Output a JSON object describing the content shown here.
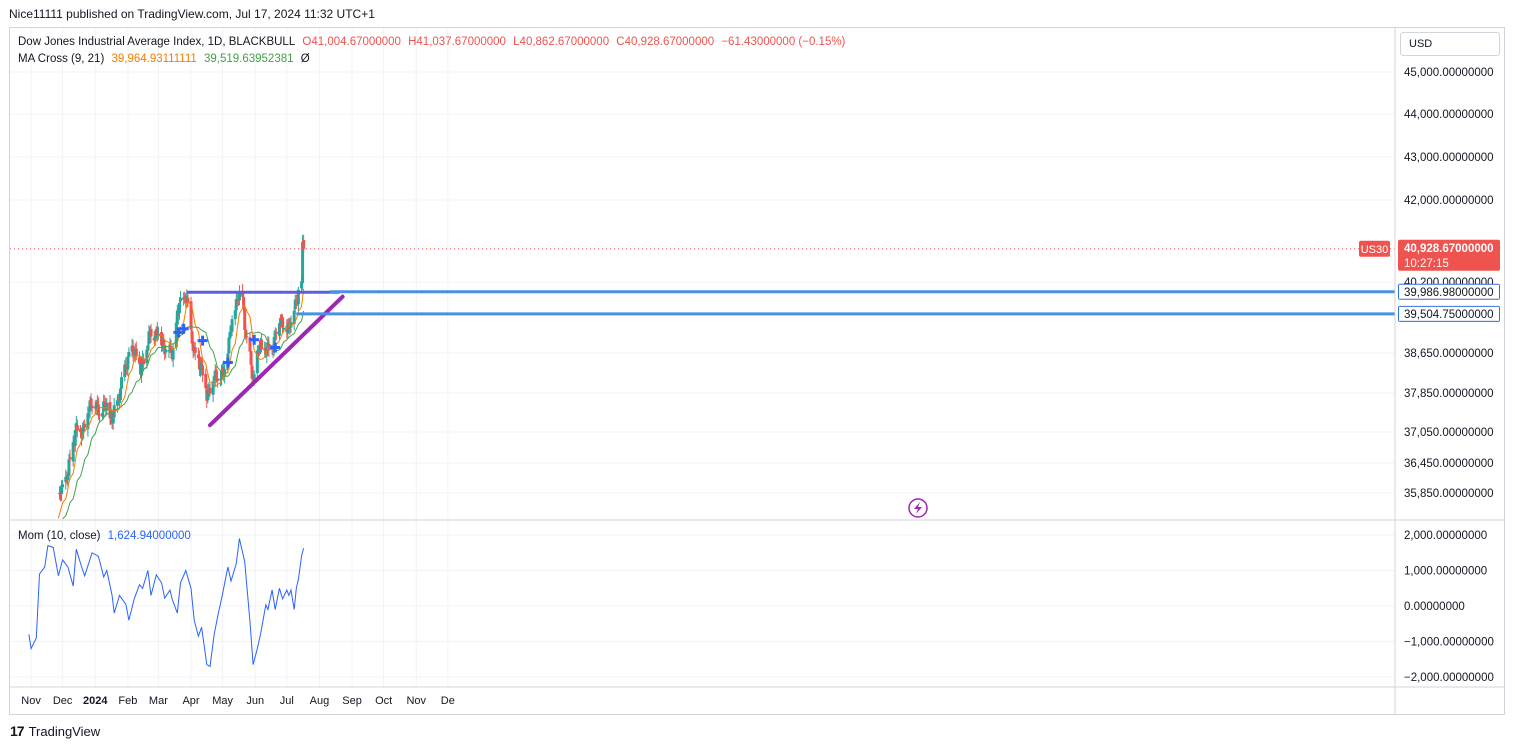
{
  "header": {
    "published": "Nice11111 published on TradingView.com, Jul 17, 2024 11:32 UTC+1"
  },
  "legend": {
    "main_title": "Dow Jones Industrial Average Index, 1D, BLACKBULL",
    "open": "O41,004.67000000",
    "high": "H41,037.67000000",
    "low": "L40,862.67000000",
    "close": "C40,928.67000000",
    "change": "−61.43000000 (−0.15%)",
    "ma_title": "MA Cross (9, 21)",
    "ma_fast": "39,964.93111111",
    "ma_slow": "39,519.63952381",
    "ma_zero": "Ø",
    "mom_title": "Mom (10, close)",
    "mom_value": "1,624.94000000"
  },
  "currency": "USD",
  "symbol_badge": "US30",
  "price_badge": {
    "price": "40,928.67000000",
    "countdown": "10:27:15"
  },
  "level_badges": [
    "39,986.98000000",
    "39,504.75000000"
  ],
  "footer": {
    "brand": "TradingView",
    "logo_text": "17"
  },
  "colors": {
    "up": "#26a69a",
    "down": "#ef5350",
    "ma_fast": "#f57c00",
    "ma_slow": "#43a047",
    "momentum": "#2962ff",
    "trendline": "#9c27b0",
    "resistance": "#5b5fe0",
    "level_line": "#4a90e2",
    "badge_bg": "#2f6fda",
    "grid": "#f0f3fa"
  },
  "chart_data": [
    {
      "type": "candlestick",
      "title": "Dow Jones Industrial Average Index, 1D, BLACKBULL",
      "x_ticks": [
        "Nov",
        "Dec",
        "2024",
        "Feb",
        "Mar",
        "Apr",
        "May",
        "Jun",
        "Jul",
        "Aug",
        "Sep",
        "Oct",
        "Nov",
        "De"
      ],
      "y_ticks": [
        "45,000.00000000",
        "44,000.00000000",
        "43,000.00000000",
        "42,000.00000000",
        "40,200.00000000",
        "38,650.00000000",
        "37,850.00000000",
        "37,050.00000000",
        "36,450.00000000",
        "35,850.00000000"
      ],
      "ma_fast_period": 9,
      "ma_slow_period": 21,
      "close_path": [
        {
          "date": "2023-11-24",
          "close": 35390
        },
        {
          "date": "2023-11-30",
          "close": 35950
        },
        {
          "date": "2023-12-05",
          "close": 36120
        },
        {
          "date": "2023-12-13",
          "close": 37090
        },
        {
          "date": "2023-12-20",
          "close": 37080
        },
        {
          "date": "2023-12-28",
          "close": 37710
        },
        {
          "date": "2024-01-05",
          "close": 37470
        },
        {
          "date": "2024-01-12",
          "close": 37590
        },
        {
          "date": "2024-01-17",
          "close": 37270
        },
        {
          "date": "2024-01-24",
          "close": 37850
        },
        {
          "date": "2024-02-02",
          "close": 38650
        },
        {
          "date": "2024-02-09",
          "close": 38670
        },
        {
          "date": "2024-02-13",
          "close": 38270
        },
        {
          "date": "2024-02-22",
          "close": 39070
        },
        {
          "date": "2024-03-01",
          "close": 39090
        },
        {
          "date": "2024-03-08",
          "close": 38720
        },
        {
          "date": "2024-03-15",
          "close": 38710
        },
        {
          "date": "2024-03-21",
          "close": 39780
        },
        {
          "date": "2024-03-28",
          "close": 39800
        },
        {
          "date": "2024-04-04",
          "close": 38600
        },
        {
          "date": "2024-04-10",
          "close": 38460
        },
        {
          "date": "2024-04-16",
          "close": 37800
        },
        {
          "date": "2024-04-19",
          "close": 37990
        },
        {
          "date": "2024-04-26",
          "close": 38240
        },
        {
          "date": "2024-05-02",
          "close": 38220
        },
        {
          "date": "2024-05-08",
          "close": 39050
        },
        {
          "date": "2024-05-15",
          "close": 39900
        },
        {
          "date": "2024-05-20",
          "close": 39810
        },
        {
          "date": "2024-05-23",
          "close": 39060
        },
        {
          "date": "2024-05-30",
          "close": 38110
        },
        {
          "date": "2024-06-05",
          "close": 38800
        },
        {
          "date": "2024-06-12",
          "close": 38710
        },
        {
          "date": "2024-06-18",
          "close": 38830
        },
        {
          "date": "2024-06-24",
          "close": 39410
        },
        {
          "date": "2024-07-01",
          "close": 39170
        },
        {
          "date": "2024-07-05",
          "close": 39380
        },
        {
          "date": "2024-07-10",
          "close": 39720
        },
        {
          "date": "2024-07-12",
          "close": 40000
        },
        {
          "date": "2024-07-15",
          "close": 40210
        },
        {
          "date": "2024-07-16",
          "close": 40950
        },
        {
          "date": "2024-07-17",
          "close": 40929
        }
      ],
      "ma_cross_signals": [
        {
          "date": "2024-03-20",
          "value": 39100
        },
        {
          "date": "2024-03-25",
          "value": 39180
        },
        {
          "date": "2024-04-12",
          "value": 38920
        },
        {
          "date": "2024-05-06",
          "value": 38460
        },
        {
          "date": "2024-05-31",
          "value": 38940
        },
        {
          "date": "2024-06-20",
          "value": 38770
        }
      ],
      "annotations": {
        "resistance": {
          "start": "2024-03-28",
          "end": "2024-08-20",
          "value": 39975
        },
        "trendline": {
          "start": "2024-04-19",
          "start_value": 37190,
          "end": "2024-08-23",
          "end_value": 39880
        },
        "levels": [
          39986.98,
          39504.75
        ],
        "last_close": 40928.67
      }
    },
    {
      "type": "line",
      "title": "Mom (10, close)",
      "y_ticks": [
        "2,000.00000000",
        "1,000.00000000",
        "0.00000000",
        "−1,000.00000000",
        "−2,000.00000000"
      ],
      "ylim": [
        -2000,
        2000
      ],
      "series": [
        {
          "name": "Mom (10, close)",
          "points": [
            {
              "date": "2023-10-30",
              "value": -800
            },
            {
              "date": "2023-11-01",
              "value": -1200
            },
            {
              "date": "2023-11-06",
              "value": -900
            },
            {
              "date": "2023-11-09",
              "value": 900
            },
            {
              "date": "2023-11-14",
              "value": 1100
            },
            {
              "date": "2023-11-17",
              "value": 1700
            },
            {
              "date": "2023-11-22",
              "value": 1650
            },
            {
              "date": "2023-11-27",
              "value": 850
            },
            {
              "date": "2023-12-01",
              "value": 1300
            },
            {
              "date": "2023-12-06",
              "value": 1100
            },
            {
              "date": "2023-12-11",
              "value": 560
            },
            {
              "date": "2023-12-14",
              "value": 1600
            },
            {
              "date": "2023-12-19",
              "value": 1100
            },
            {
              "date": "2023-12-22",
              "value": 850
            },
            {
              "date": "2023-12-29",
              "value": 1500
            },
            {
              "date": "2024-01-04",
              "value": 1400
            },
            {
              "date": "2024-01-09",
              "value": 820
            },
            {
              "date": "2024-01-12",
              "value": 1000
            },
            {
              "date": "2024-01-17",
              "value": 300
            },
            {
              "date": "2024-01-19",
              "value": -200
            },
            {
              "date": "2024-01-24",
              "value": 300
            },
            {
              "date": "2024-01-30",
              "value": 50
            },
            {
              "date": "2024-02-02",
              "value": -400
            },
            {
              "date": "2024-02-07",
              "value": 200
            },
            {
              "date": "2024-02-12",
              "value": 600
            },
            {
              "date": "2024-02-15",
              "value": 500
            },
            {
              "date": "2024-02-20",
              "value": 1000
            },
            {
              "date": "2024-02-23",
              "value": 300
            },
            {
              "date": "2024-02-28",
              "value": 880
            },
            {
              "date": "2024-03-04",
              "value": 650
            },
            {
              "date": "2024-03-07",
              "value": 220
            },
            {
              "date": "2024-03-12",
              "value": 450
            },
            {
              "date": "2024-03-14",
              "value": 200
            },
            {
              "date": "2024-03-19",
              "value": -200
            },
            {
              "date": "2024-03-22",
              "value": 650
            },
            {
              "date": "2024-03-27",
              "value": 1000
            },
            {
              "date": "2024-04-01",
              "value": 500
            },
            {
              "date": "2024-04-04",
              "value": -400
            },
            {
              "date": "2024-04-08",
              "value": -850
            },
            {
              "date": "2024-04-11",
              "value": -600
            },
            {
              "date": "2024-04-16",
              "value": -1650
            },
            {
              "date": "2024-04-19",
              "value": -1700
            },
            {
              "date": "2024-04-23",
              "value": -800
            },
            {
              "date": "2024-04-26",
              "value": -350
            },
            {
              "date": "2024-05-01",
              "value": 350
            },
            {
              "date": "2024-05-06",
              "value": 1100
            },
            {
              "date": "2024-05-09",
              "value": 700
            },
            {
              "date": "2024-05-14",
              "value": 1200
            },
            {
              "date": "2024-05-17",
              "value": 1900
            },
            {
              "date": "2024-05-22",
              "value": 1250
            },
            {
              "date": "2024-05-27",
              "value": -450
            },
            {
              "date": "2024-05-30",
              "value": -1650
            },
            {
              "date": "2024-06-03",
              "value": -1200
            },
            {
              "date": "2024-06-06",
              "value": -800
            },
            {
              "date": "2024-06-11",
              "value": 30
            },
            {
              "date": "2024-06-13",
              "value": -100
            },
            {
              "date": "2024-06-17",
              "value": 450
            },
            {
              "date": "2024-06-20",
              "value": -100
            },
            {
              "date": "2024-06-24",
              "value": 500
            },
            {
              "date": "2024-06-27",
              "value": 200
            },
            {
              "date": "2024-07-01",
              "value": 450
            },
            {
              "date": "2024-07-03",
              "value": 300
            },
            {
              "date": "2024-07-05",
              "value": 450
            },
            {
              "date": "2024-07-08",
              "value": -100
            },
            {
              "date": "2024-07-10",
              "value": 500
            },
            {
              "date": "2024-07-12",
              "value": 750
            },
            {
              "date": "2024-07-15",
              "value": 1400
            },
            {
              "date": "2024-07-17",
              "value": 1625
            }
          ]
        }
      ]
    }
  ]
}
